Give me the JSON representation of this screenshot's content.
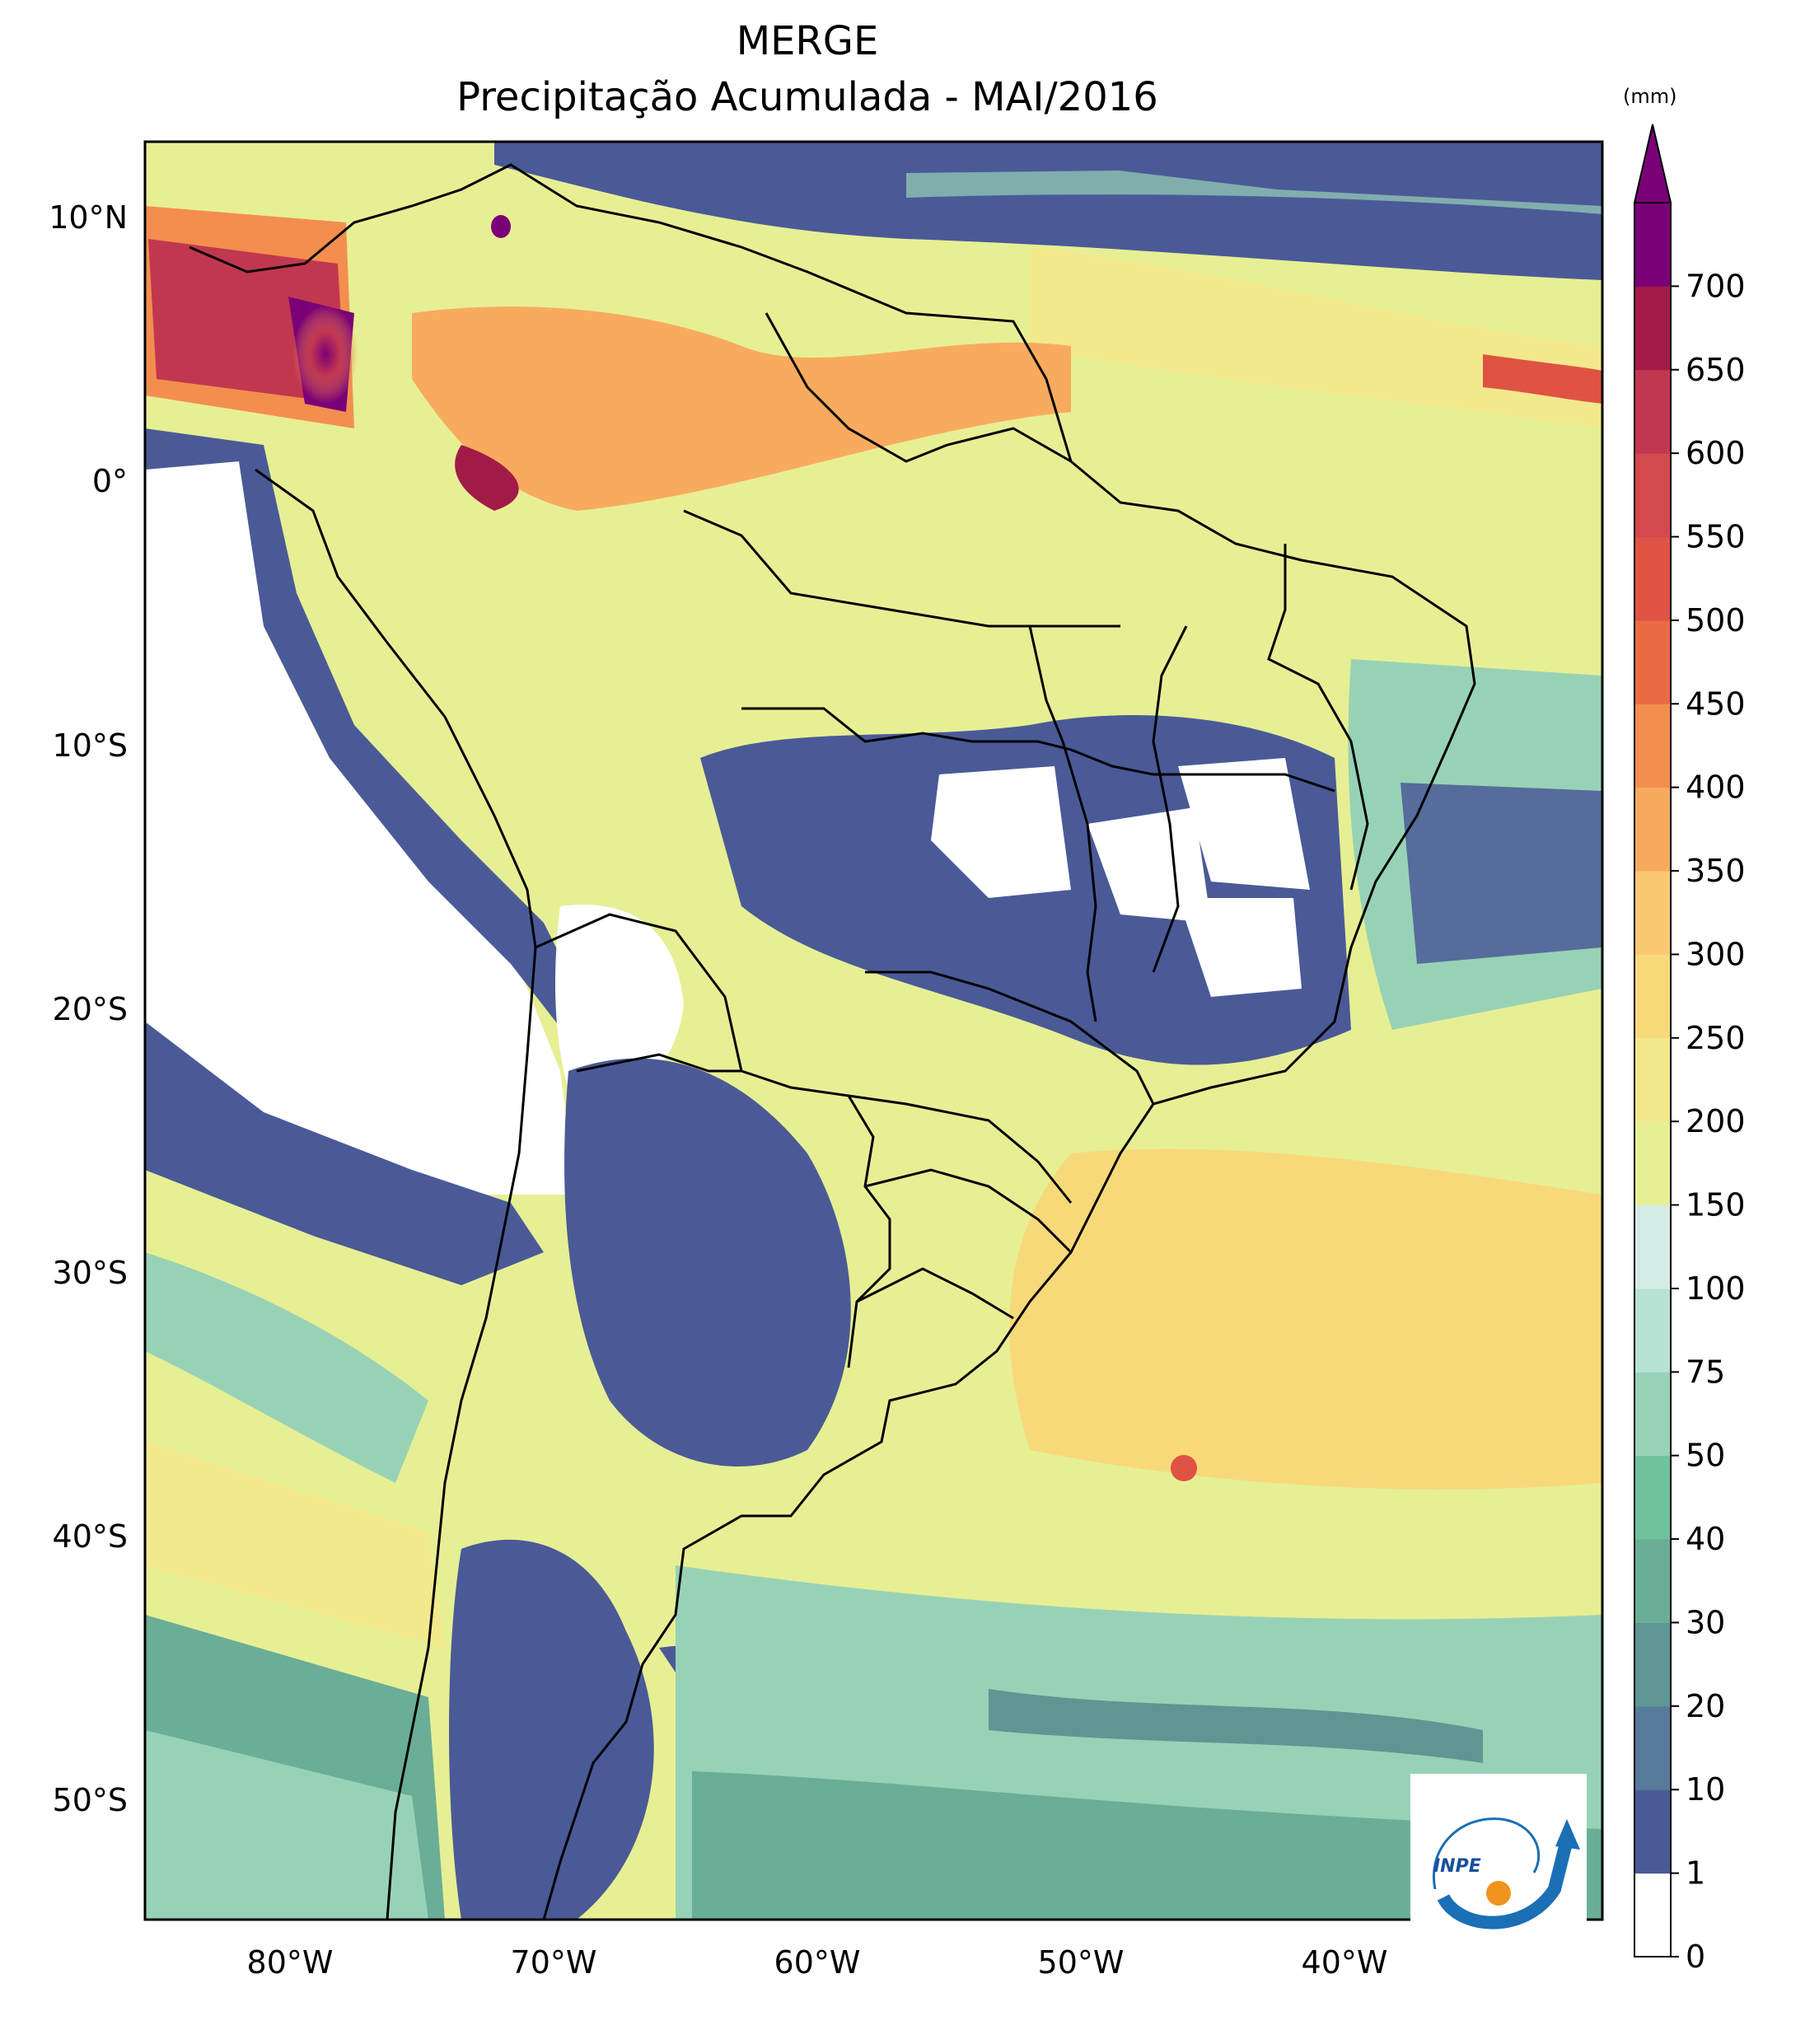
{
  "title": "MERGE",
  "subtitle": "Precipitação Acumulada - MAI/2016",
  "colorbar": {
    "unit": "(mm)",
    "levels": [
      "0",
      "1",
      "10",
      "20",
      "30",
      "40",
      "50",
      "75",
      "100",
      "150",
      "200",
      "250",
      "300",
      "350",
      "400",
      "450",
      "500",
      "550",
      "600",
      "650",
      "700"
    ],
    "colors": [
      "#ffffff",
      "#4a5a97",
      "#577a9a",
      "#5d9693",
      "#6aae97",
      "#6fc39c",
      "#98d2b6",
      "#b6e1d3",
      "#d4ece7",
      "#e7ef94",
      "#f4e88d",
      "#f8d97a",
      "#fbc872",
      "#f8ab5e",
      "#f38e4f",
      "#eb6b45",
      "#df5344",
      "#d4494d",
      "#c23750",
      "#a21b48",
      "#7a0077"
    ]
  },
  "map": {
    "lat_labels": [
      "10°N",
      "0°",
      "10°S",
      "20°S",
      "30°S",
      "40°S",
      "50°S"
    ],
    "lon_labels": [
      "80°W",
      "70°W",
      "60°W",
      "50°W",
      "40°W"
    ]
  },
  "logo": {
    "text": "INPE"
  }
}
